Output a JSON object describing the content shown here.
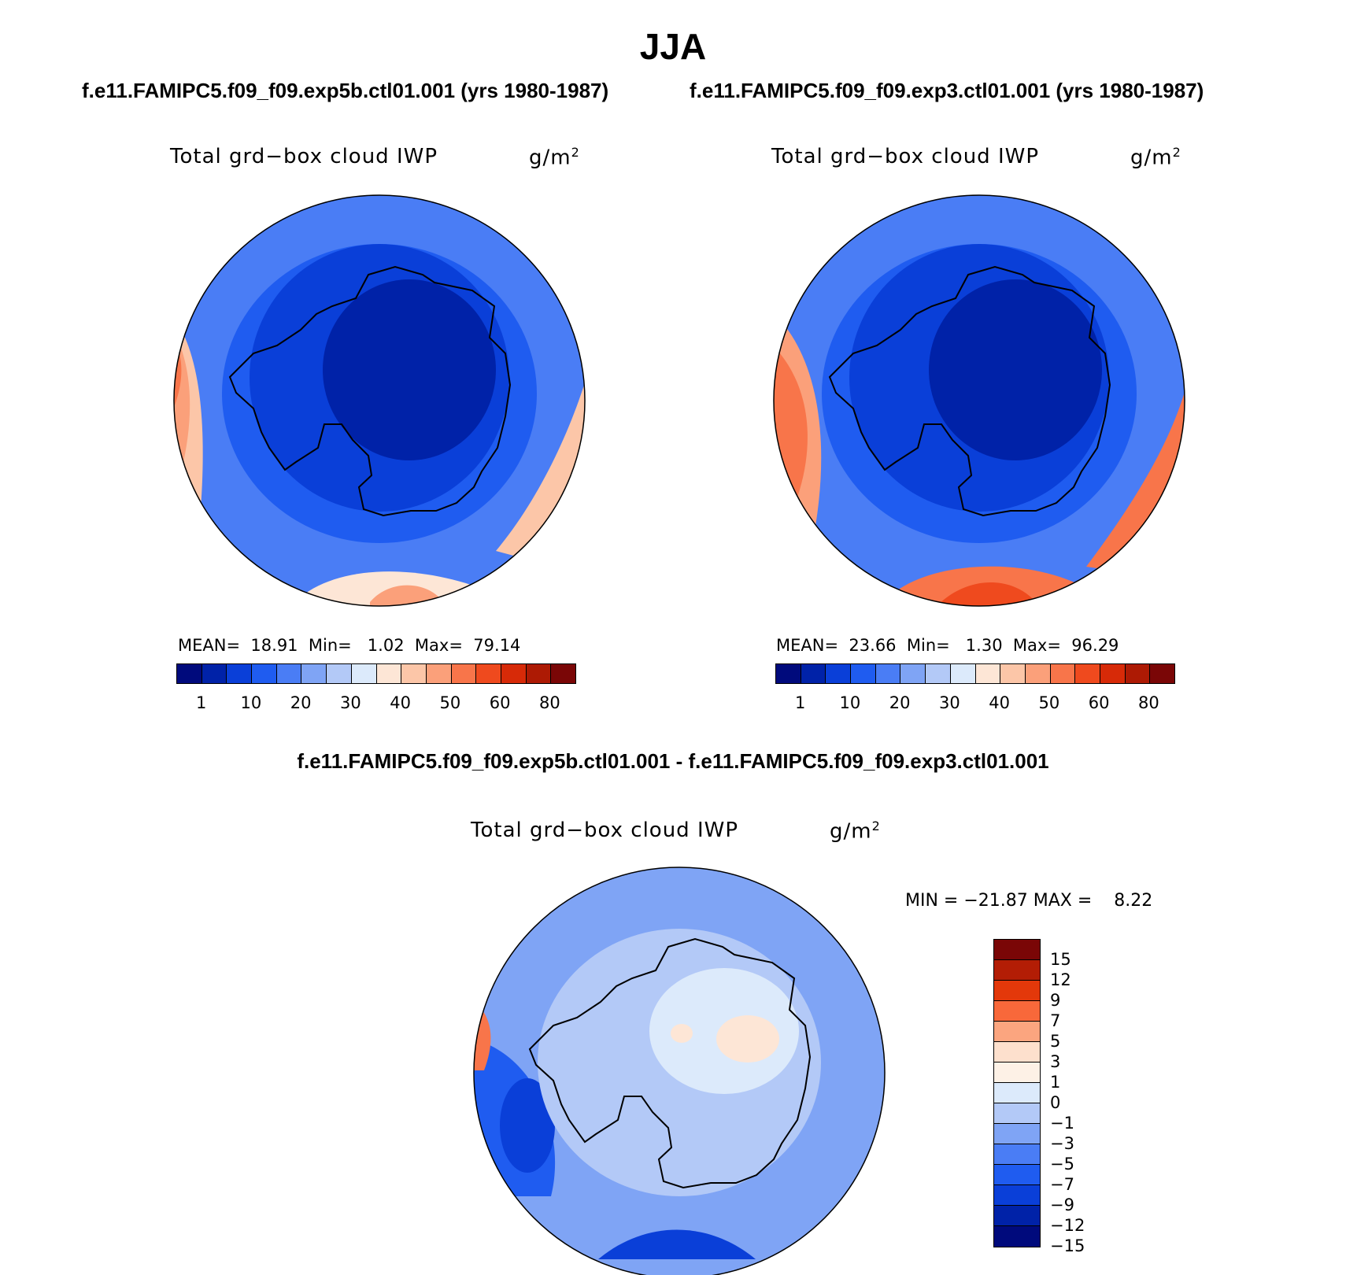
{
  "title": "JJA",
  "panels": [
    {
      "case": "f.e11.FAMIPC5.f09_f09.exp5b.ctl01.001 (yrs 1980-1987)",
      "variable": "Total grd−box cloud IWP",
      "units": "g/m",
      "units_sup": "2",
      "stats": {
        "mean_label": "MEAN=",
        "mean": "18.91",
        "min_label": "Min=",
        "min": "1.02",
        "max_label": "Max=",
        "max": "79.14"
      }
    },
    {
      "case": "f.e11.FAMIPC5.f09_f09.exp3.ctl01.001 (yrs 1980-1987)",
      "variable": "Total grd−box cloud IWP",
      "units": "g/m",
      "units_sup": "2",
      "stats": {
        "mean_label": "MEAN=",
        "mean": "23.66",
        "min_label": "Min=",
        "min": "1.30",
        "max_label": "Max=",
        "max": "96.29"
      }
    }
  ],
  "colorbar_abs": {
    "colors": [
      "#000a7c",
      "#0022a8",
      "#0a3fd8",
      "#1f5cf0",
      "#4a7df5",
      "#7fa4f5",
      "#b3c9f7",
      "#dceafb",
      "#fde6d6",
      "#fcc6a8",
      "#fba07a",
      "#f8754a",
      "#ef4a1e",
      "#d72a08",
      "#ad1a04",
      "#7a0606"
    ],
    "ticks": [
      "1",
      "10",
      "20",
      "30",
      "40",
      "50",
      "60",
      "80"
    ]
  },
  "difference": {
    "title": "f.e11.FAMIPC5.f09_f09.exp5b.ctl01.001 - f.e11.FAMIPC5.f09_f09.exp3.ctl01.001",
    "variable": "Total grd−box cloud IWP",
    "units": "g/m",
    "units_sup": "2",
    "minmax": "MIN = −21.87 MAX =    8.22",
    "colorbar": {
      "colors": [
        "#7a0606",
        "#b31d05",
        "#e3380a",
        "#f8683a",
        "#fba57f",
        "#fde0cd",
        "#fdf1e6",
        "#dceafb",
        "#b3c9f7",
        "#7fa4f5",
        "#4a7df5",
        "#1f5cf0",
        "#0a3fd8",
        "#0022a8",
        "#000a7c"
      ],
      "ticks": [
        "15",
        "12",
        "9",
        "7",
        "5",
        "3",
        "1",
        "0",
        "−1",
        "−3",
        "−5",
        "−7",
        "−9",
        "−12",
        "−15"
      ]
    }
  }
}
